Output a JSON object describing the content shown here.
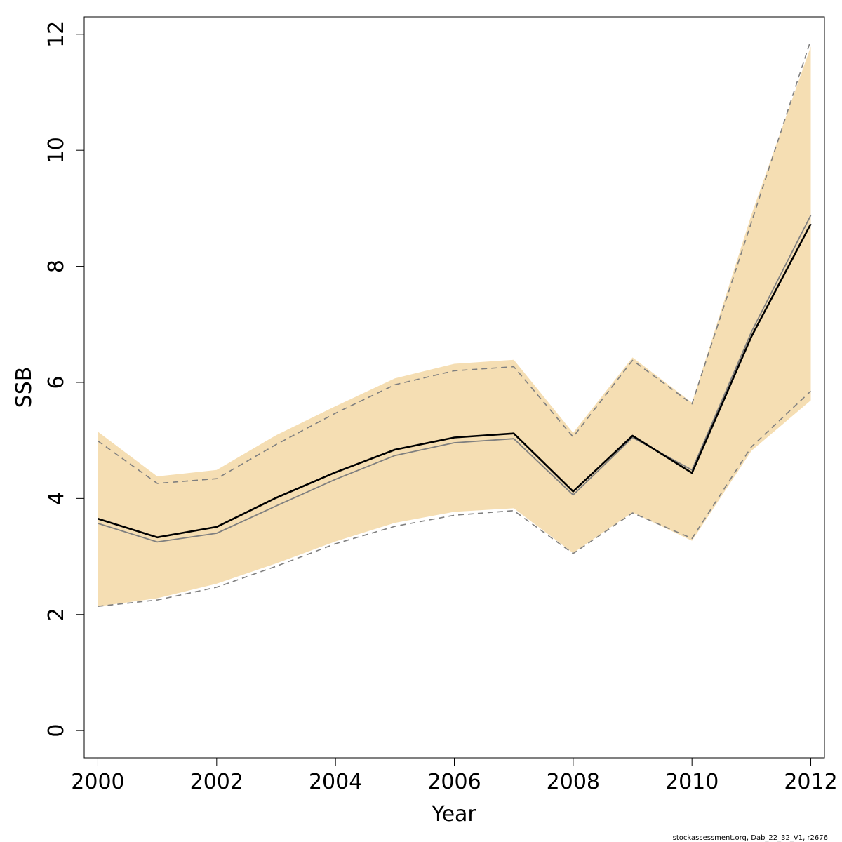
{
  "chart_data": {
    "type": "line",
    "title": "",
    "xlabel": "Year",
    "ylabel": "SSB",
    "xlim": [
      1999.77,
      2012.23
    ],
    "ylim": [
      -0.47,
      12.3
    ],
    "x_ticks": [
      "2000",
      "2002",
      "2004",
      "2006",
      "2008",
      "2010",
      "2012"
    ],
    "y_ticks": [
      "0",
      "2",
      "4",
      "6",
      "8",
      "10",
      "12"
    ],
    "grid": false,
    "legend": "none",
    "x": [
      2000,
      2001,
      2002,
      2003,
      2004,
      2005,
      2006,
      2007,
      2008,
      2009,
      2010,
      2011,
      2012
    ],
    "band": {
      "lower": [
        2.14,
        2.28,
        2.53,
        2.88,
        3.26,
        3.58,
        3.77,
        3.83,
        3.06,
        3.76,
        3.27,
        4.82,
        5.69
      ],
      "upper": [
        5.15,
        4.38,
        4.49,
        5.09,
        5.59,
        6.07,
        6.32,
        6.39,
        5.13,
        6.43,
        5.65,
        8.89,
        11.79
      ]
    },
    "series": [
      {
        "role": "estimate",
        "values": [
          3.65,
          3.33,
          3.51,
          4.01,
          4.45,
          4.84,
          5.05,
          5.12,
          4.12,
          5.08,
          4.44,
          6.79,
          8.73
        ]
      },
      {
        "role": "comparison-estimate",
        "values": [
          3.57,
          3.25,
          3.4,
          3.87,
          4.33,
          4.74,
          4.96,
          5.03,
          4.06,
          5.05,
          4.49,
          6.87,
          8.88
        ]
      },
      {
        "role": "comparison-upper",
        "values": [
          4.99,
          4.26,
          4.34,
          4.93,
          5.47,
          5.96,
          6.2,
          6.27,
          5.06,
          6.38,
          5.63,
          8.76,
          11.9
        ]
      },
      {
        "role": "comparison-lower",
        "values": [
          2.14,
          2.25,
          2.47,
          2.83,
          3.22,
          3.52,
          3.71,
          3.79,
          3.05,
          3.75,
          3.31,
          4.89,
          5.85
        ]
      }
    ],
    "colors": {
      "band": "#f5deb3",
      "estimate": "#000000",
      "comparison": "#7f7f7f",
      "axis": "#000000"
    }
  },
  "footer": {
    "credit": "stockassessment.org, Dab_22_32_V1, r2676"
  }
}
